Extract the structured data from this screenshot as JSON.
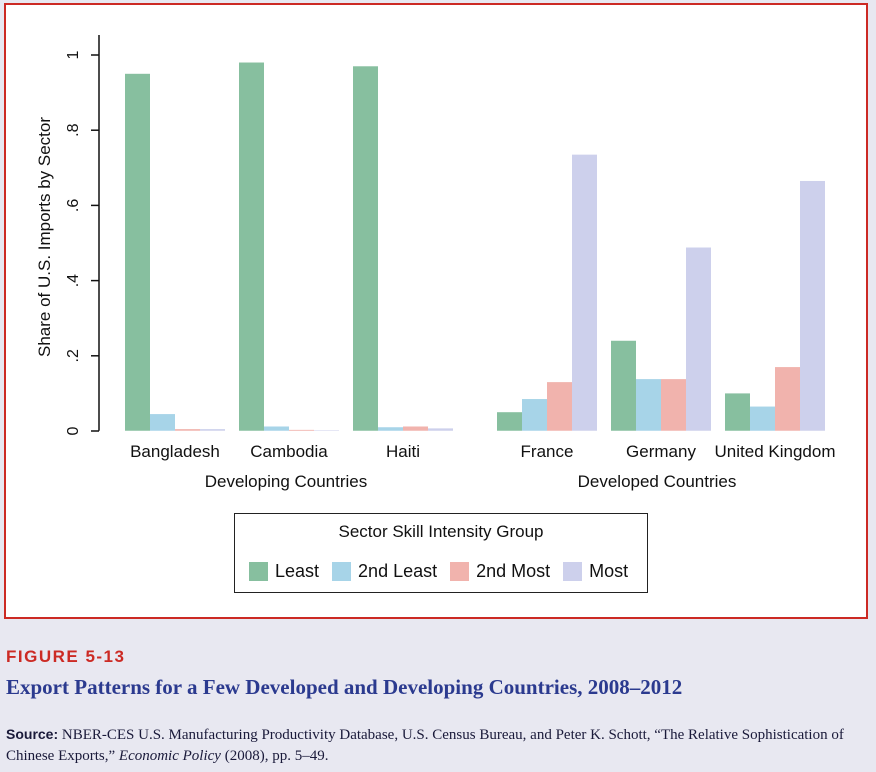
{
  "chart_data": {
    "type": "bar",
    "ylabel": "Share of U.S. Imports by Sector",
    "ylim": [
      0,
      1
    ],
    "yticks": [
      "0",
      ".2",
      ".4",
      ".6",
      ".8",
      "1"
    ],
    "ytick_values": [
      0,
      0.2,
      0.4,
      0.6,
      0.8,
      1
    ],
    "categories": [
      "Bangladesh",
      "Cambodia",
      "Haiti",
      "France",
      "Germany",
      "United Kingdom"
    ],
    "groups": [
      {
        "label": "Developing Countries",
        "categories": [
          "Bangladesh",
          "Cambodia",
          "Haiti"
        ]
      },
      {
        "label": "Developed Countries",
        "categories": [
          "France",
          "Germany",
          "United Kingdom"
        ]
      }
    ],
    "legend_title": "Sector Skill Intensity Group",
    "legend_position": "bottom",
    "grid": false,
    "series": [
      {
        "name": "Least",
        "color": "#87bf9f",
        "values": [
          0.95,
          0.98,
          0.97,
          0.05,
          0.24,
          0.1
        ]
      },
      {
        "name": "2nd Least",
        "color": "#a7d4e8",
        "values": [
          0.045,
          0.012,
          0.01,
          0.085,
          0.138,
          0.065
        ]
      },
      {
        "name": "2nd Most",
        "color": "#f1b3ad",
        "values": [
          0.005,
          0.003,
          0.012,
          0.13,
          0.138,
          0.17
        ]
      },
      {
        "name": "Most",
        "color": "#cdd0ec",
        "values": [
          0.005,
          0.002,
          0.007,
          0.735,
          0.488,
          0.665
        ]
      }
    ]
  },
  "figure": {
    "number": "FIGURE 5-13",
    "title": "Export Patterns for a Few Developed and Developing Countries, 2008–2012",
    "source_label": "Source:",
    "source_text_1": "NBER-CES U.S. Manufacturing Productivity Database, U.S. Census Bureau, and Peter K. Schott, “The Relative Sophistication of Chinese Exports,”",
    "source_journal": "Economic Policy",
    "source_text_2": "(2008), pp. 5–49."
  },
  "colors": {
    "frame_border": "#cc2a24",
    "title_blue": "#2b3a8f",
    "page_bg": "#e8e8f1"
  }
}
